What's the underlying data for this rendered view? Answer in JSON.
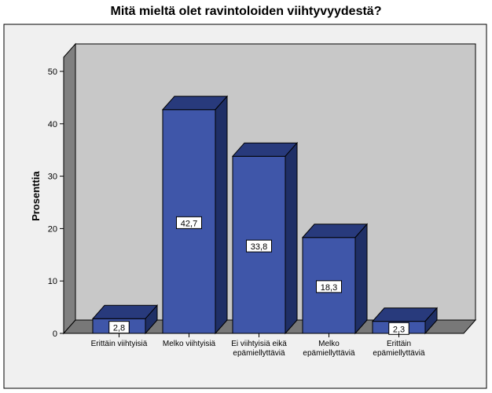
{
  "chart_data": {
    "type": "bar",
    "title": "Mitä mieltä olet ravintoloiden viihtyvyydestä?",
    "xlabel": "",
    "ylabel": "Prosenttia",
    "ylim": [
      0,
      55
    ],
    "yticks": [
      0,
      10,
      20,
      30,
      40,
      50
    ],
    "categories": [
      [
        "Erittäin viihtyisiä"
      ],
      [
        "Melko viihtyisiä"
      ],
      [
        "Ei viihtyisiä eikä",
        "epämiellyttäviä"
      ],
      [
        "Melko",
        "epämiellyttäviä"
      ],
      [
        "Erittäin",
        "epämiellyttäviä"
      ]
    ],
    "values": [
      2.8,
      42.7,
      33.8,
      18.3,
      2.3
    ],
    "data_labels": [
      "2,8",
      "42,7",
      "33,8",
      "18,3",
      "2,3"
    ],
    "grid": false,
    "style": "3d",
    "colors": {
      "bar_front": "#3f56a9",
      "bar_top": "#283a7c",
      "bar_side": "#1f2f66",
      "plot_back": "#c8c8c8",
      "plot_left_wall": "#808080",
      "plot_floor": "#787878",
      "outer_bg": "#f0f0f0"
    }
  }
}
